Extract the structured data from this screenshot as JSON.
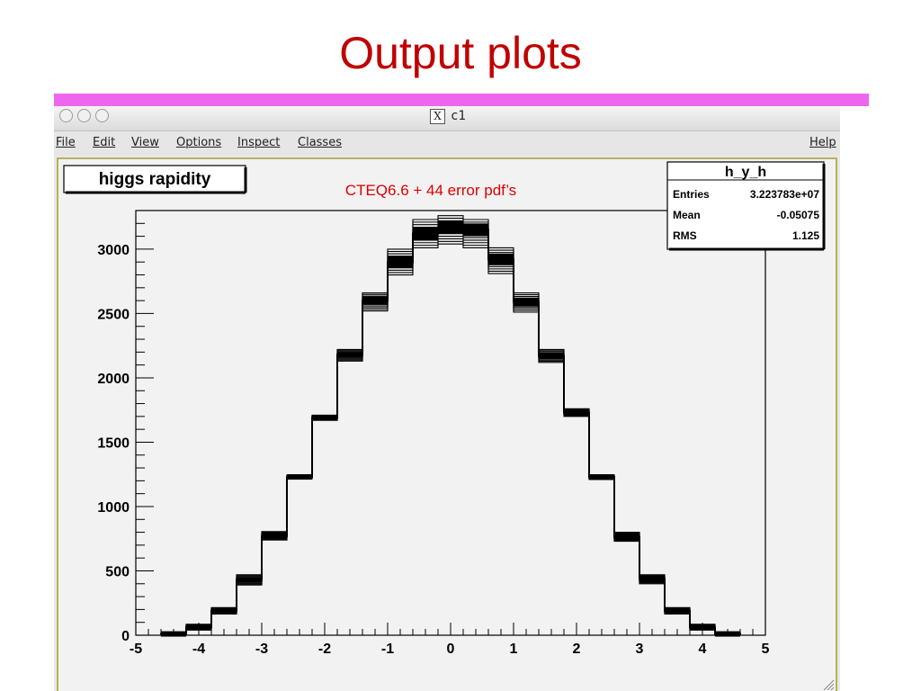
{
  "slide": {
    "title": "Output plots"
  },
  "window": {
    "title": "c1",
    "menus": [
      "File",
      "Edit",
      "View",
      "Options",
      "Inspect",
      "Classes"
    ],
    "help": "Help"
  },
  "plot": {
    "title_box": "higgs rapidity",
    "annotation": "CTEQ6.6 + 44 error pdf’s",
    "stats": {
      "name": "h_y_h",
      "rows": [
        {
          "label": "Entries",
          "value": "3.223783e+07"
        },
        {
          "label": "Mean",
          "value": "-0.05075"
        },
        {
          "label": "RMS",
          "value": "1.125"
        }
      ]
    }
  },
  "colors": {
    "title": "#c00000",
    "accent_bar": "#ee66ee",
    "annotation": "#dd0000",
    "histogram": "#000000",
    "canvas": "#f2f2f2"
  },
  "chart_data": {
    "type": "histogram",
    "title": "higgs rapidity",
    "xlim": [
      -5,
      5
    ],
    "ylim": [
      0,
      3300
    ],
    "xticks": [
      "-5",
      "-4",
      "-3",
      "-2",
      "-1",
      "0",
      "1",
      "2",
      "3",
      "4",
      "5"
    ],
    "yticks": [
      "0",
      "500",
      "1000",
      "1500",
      "2000",
      "2500",
      "3000"
    ],
    "grid": false,
    "bin_edges": [
      -4.6,
      -4.2,
      -3.8,
      -3.4,
      -3.0,
      -2.6,
      -2.2,
      -1.8,
      -1.4,
      -1.0,
      -0.6,
      -0.2,
      0.2,
      0.6,
      1.0,
      1.4,
      1.8,
      2.2,
      2.6,
      3.0,
      3.4,
      3.8,
      4.2,
      4.6
    ],
    "central": [
      10,
      65,
      190,
      430,
      770,
      1230,
      1690,
      2180,
      2600,
      2900,
      3120,
      3170,
      3150,
      2920,
      2590,
      2170,
      1730,
      1230,
      760,
      440,
      190,
      60,
      10
    ],
    "band_low": [
      5,
      40,
      165,
      390,
      740,
      1215,
      1670,
      2130,
      2520,
      2800,
      3010,
      3040,
      3010,
      2810,
      2510,
      2120,
      1700,
      1210,
      730,
      400,
      165,
      40,
      5
    ],
    "band_high": [
      15,
      85,
      215,
      470,
      805,
      1245,
      1710,
      2220,
      2660,
      3000,
      3230,
      3260,
      3230,
      3010,
      2660,
      2220,
      1760,
      1245,
      800,
      470,
      215,
      85,
      15
    ],
    "num_error_variants": 44
  }
}
